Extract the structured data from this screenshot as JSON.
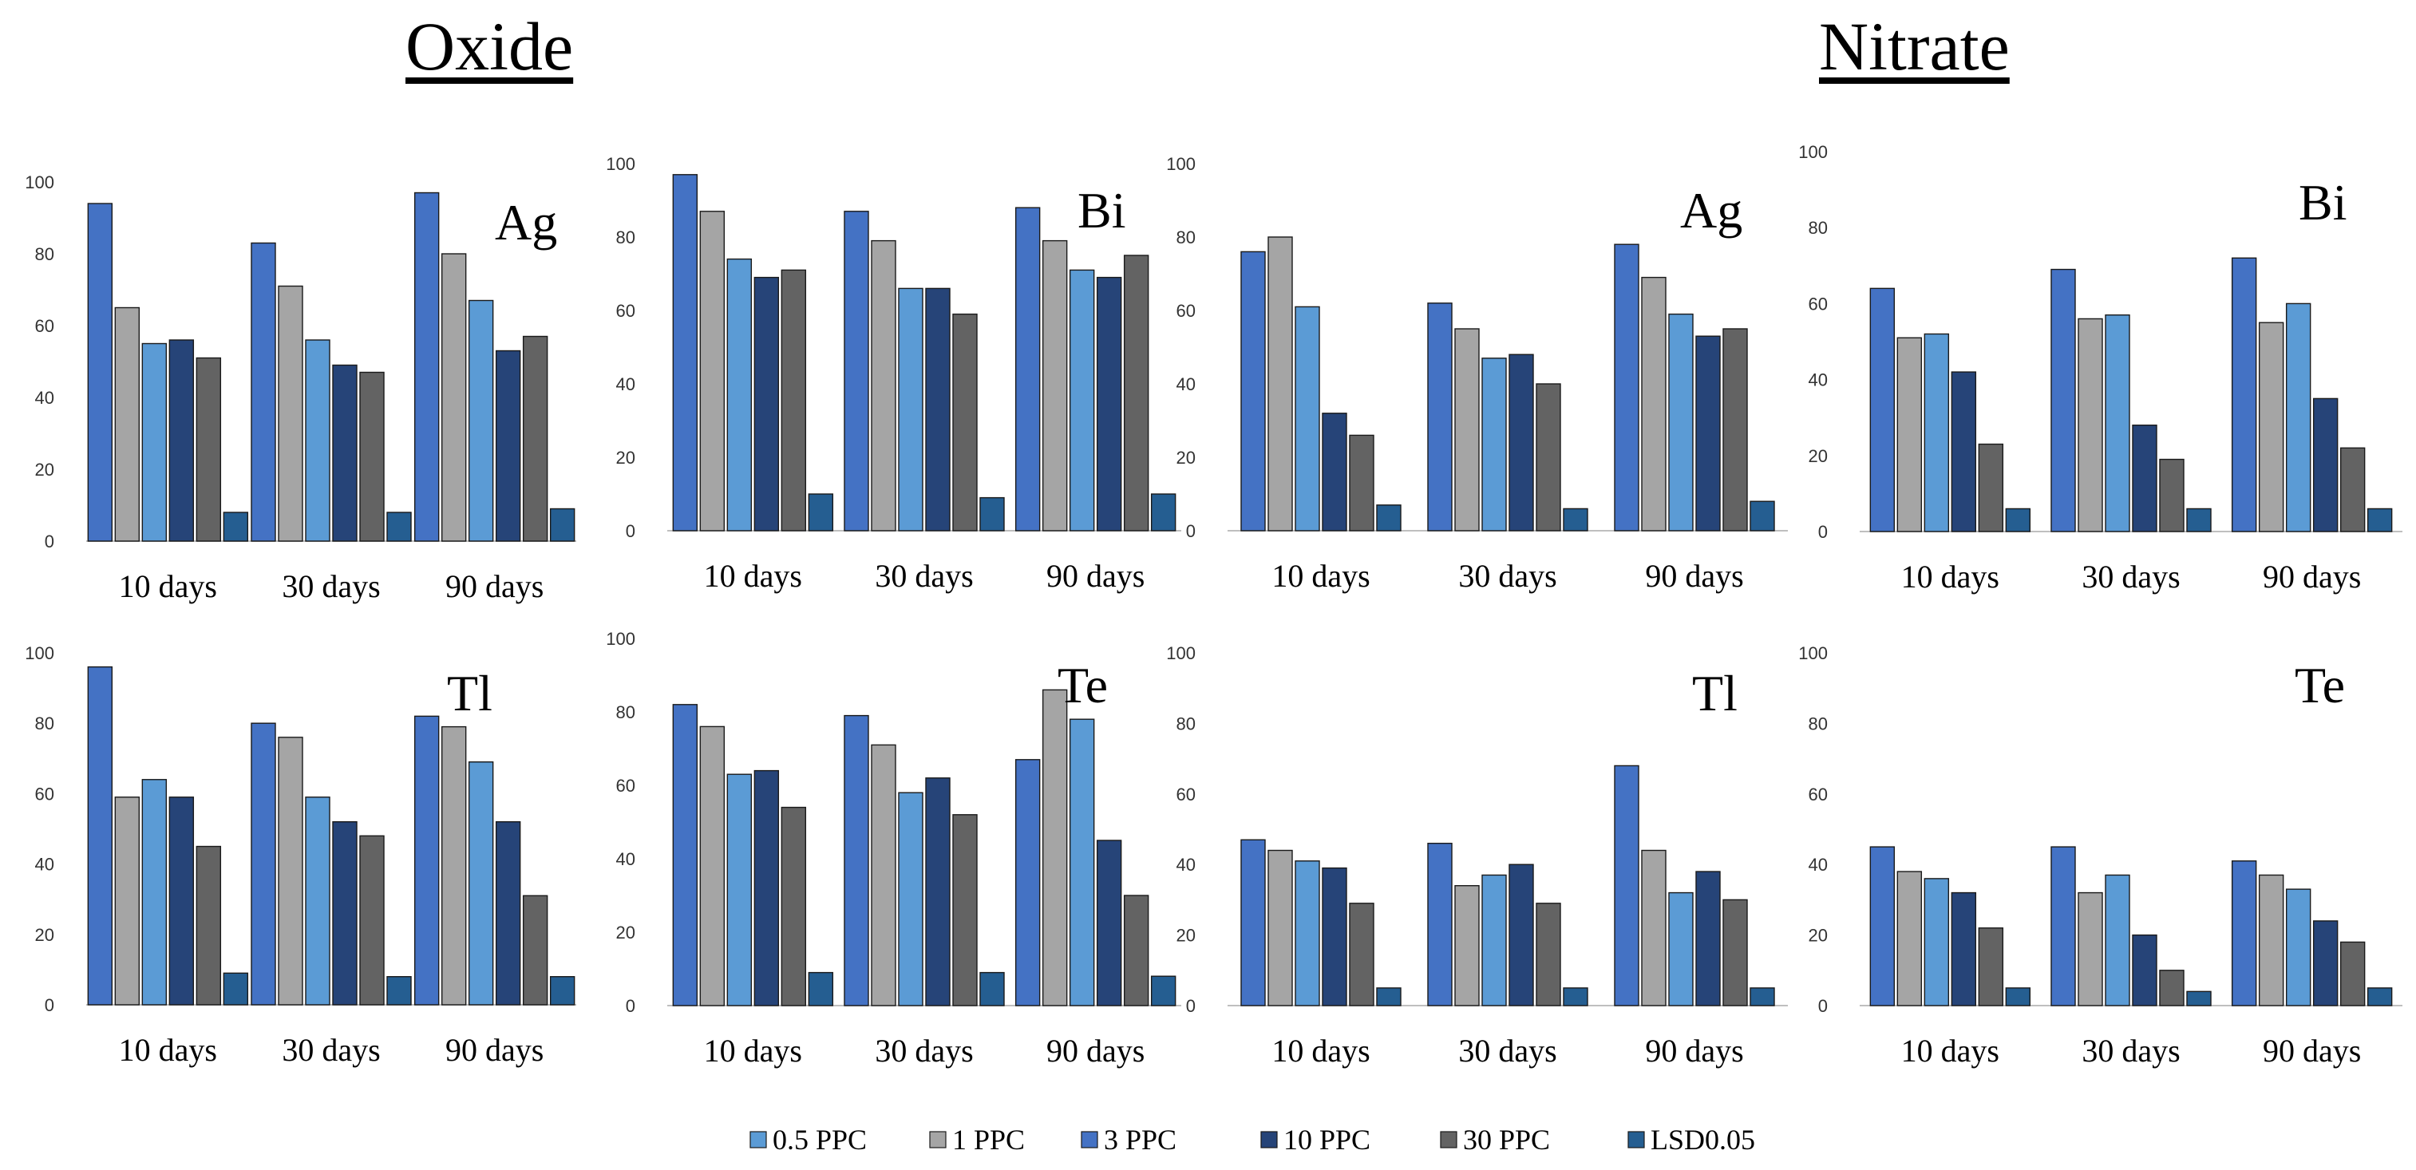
{
  "titles": {
    "oxide": "Oxide",
    "nitrate": "Nitrate"
  },
  "colors": {
    "0.5 PPC": "#5B9BD5",
    "1 PPC": "#A5A5A5",
    "3 PPC": "#4472C4",
    "10 PPC": "#264478",
    "30 PPC": "#636363",
    "LSD0.05": "#255E91"
  },
  "legend": [
    "0.5 PPC",
    "1 PPC",
    "3 PPC",
    "10 PPC",
    "30 PPC",
    "LSD0.05"
  ],
  "chart_data": [
    {
      "id": "oxide-ag",
      "group": "Oxide",
      "label": "Ag",
      "type": "bar",
      "categories": [
        "10 days",
        "30 days",
        "90 days"
      ],
      "ylim": [
        0,
        100
      ],
      "yticks": [
        0,
        20,
        40,
        60,
        80,
        100
      ],
      "series_order": [
        "3 PPC",
        "1 PPC",
        "0.5 PPC",
        "10 PPC",
        "30 PPC",
        "LSD0.05"
      ],
      "values": [
        [
          94,
          65,
          55,
          56,
          51,
          8
        ],
        [
          83,
          71,
          56,
          49,
          47,
          8
        ],
        [
          97,
          80,
          67,
          53,
          57,
          9
        ]
      ]
    },
    {
      "id": "oxide-bi",
      "group": "Oxide",
      "label": "Bi",
      "type": "bar",
      "categories": [
        "10 days",
        "30 days",
        "90 days"
      ],
      "ylim": [
        0,
        100
      ],
      "yticks": [
        0,
        20,
        40,
        60,
        80,
        100
      ],
      "series_order": [
        "3 PPC",
        "1 PPC",
        "0.5 PPC",
        "10 PPC",
        "30 PPC",
        "LSD0.05"
      ],
      "values": [
        [
          97,
          87,
          74,
          69,
          71,
          10
        ],
        [
          87,
          79,
          66,
          66,
          59,
          9
        ],
        [
          88,
          79,
          71,
          69,
          75,
          10
        ]
      ]
    },
    {
      "id": "nitrate-ag",
      "group": "Nitrate",
      "label": "Ag",
      "type": "bar",
      "categories": [
        "10 days",
        "30 days",
        "90 days"
      ],
      "ylim": [
        0,
        100
      ],
      "yticks": [
        0,
        20,
        40,
        60,
        80,
        100
      ],
      "series_order": [
        "3 PPC",
        "1 PPC",
        "0.5 PPC",
        "10 PPC",
        "30 PPC",
        "LSD0.05"
      ],
      "values": [
        [
          76,
          80,
          61,
          32,
          26,
          7
        ],
        [
          62,
          55,
          47,
          48,
          40,
          6
        ],
        [
          78,
          69,
          59,
          53,
          55,
          8
        ]
      ]
    },
    {
      "id": "nitrate-bi",
      "group": "Nitrate",
      "label": "Bi",
      "type": "bar",
      "categories": [
        "10 days",
        "30 days",
        "90 days"
      ],
      "ylim": [
        0,
        100
      ],
      "yticks": [
        0,
        20,
        40,
        60,
        80,
        100
      ],
      "series_order": [
        "3 PPC",
        "1 PPC",
        "0.5 PPC",
        "10 PPC",
        "30 PPC",
        "LSD0.05"
      ],
      "values": [
        [
          64,
          51,
          52,
          42,
          23,
          6
        ],
        [
          69,
          56,
          57,
          28,
          19,
          6
        ],
        [
          72,
          55,
          60,
          35,
          22,
          6
        ]
      ]
    },
    {
      "id": "oxide-tl",
      "group": "Oxide",
      "label": "Tl",
      "type": "bar",
      "categories": [
        "10 days",
        "30 days",
        "90 days"
      ],
      "ylim": [
        0,
        100
      ],
      "yticks": [
        0,
        20,
        40,
        60,
        80,
        100
      ],
      "series_order": [
        "3 PPC",
        "1 PPC",
        "0.5 PPC",
        "10 PPC",
        "30 PPC",
        "LSD0.05"
      ],
      "values": [
        [
          96,
          59,
          64,
          59,
          45,
          9
        ],
        [
          80,
          76,
          59,
          52,
          48,
          8
        ],
        [
          82,
          79,
          69,
          52,
          31,
          8
        ]
      ]
    },
    {
      "id": "oxide-te",
      "group": "Oxide",
      "label": "Te",
      "type": "bar",
      "categories": [
        "10 days",
        "30 days",
        "90 days"
      ],
      "ylim": [
        0,
        100
      ],
      "yticks": [
        0,
        20,
        40,
        60,
        80,
        100
      ],
      "series_order": [
        "3 PPC",
        "1 PPC",
        "0.5 PPC",
        "10 PPC",
        "30 PPC",
        "LSD0.05"
      ],
      "values": [
        [
          82,
          76,
          63,
          64,
          54,
          9
        ],
        [
          79,
          71,
          58,
          62,
          52,
          9
        ],
        [
          67,
          86,
          78,
          45,
          30,
          8
        ]
      ]
    },
    {
      "id": "nitrate-tl",
      "group": "Nitrate",
      "label": "Tl",
      "type": "bar",
      "categories": [
        "10 days",
        "30 days",
        "90 days"
      ],
      "ylim": [
        0,
        100
      ],
      "yticks": [
        0,
        20,
        40,
        60,
        80,
        100
      ],
      "series_order": [
        "3 PPC",
        "1 PPC",
        "0.5 PPC",
        "10 PPC",
        "30 PPC",
        "LSD0.05"
      ],
      "values": [
        [
          47,
          44,
          41,
          39,
          29,
          5
        ],
        [
          46,
          34,
          37,
          40,
          29,
          5
        ],
        [
          68,
          44,
          32,
          38,
          30,
          5
        ]
      ]
    },
    {
      "id": "nitrate-te",
      "group": "Nitrate",
      "label": "Te",
      "type": "bar",
      "categories": [
        "10 days",
        "30 days",
        "90 days"
      ],
      "ylim": [
        0,
        100
      ],
      "yticks": [
        0,
        20,
        40,
        60,
        80,
        100
      ],
      "series_order": [
        "3 PPC",
        "1 PPC",
        "0.5 PPC",
        "10 PPC",
        "30 PPC",
        "LSD0.05"
      ],
      "values": [
        [
          45,
          38,
          36,
          32,
          22,
          5
        ],
        [
          45,
          32,
          37,
          20,
          10,
          4
        ],
        [
          41,
          37,
          33,
          24,
          18,
          5
        ]
      ]
    }
  ]
}
